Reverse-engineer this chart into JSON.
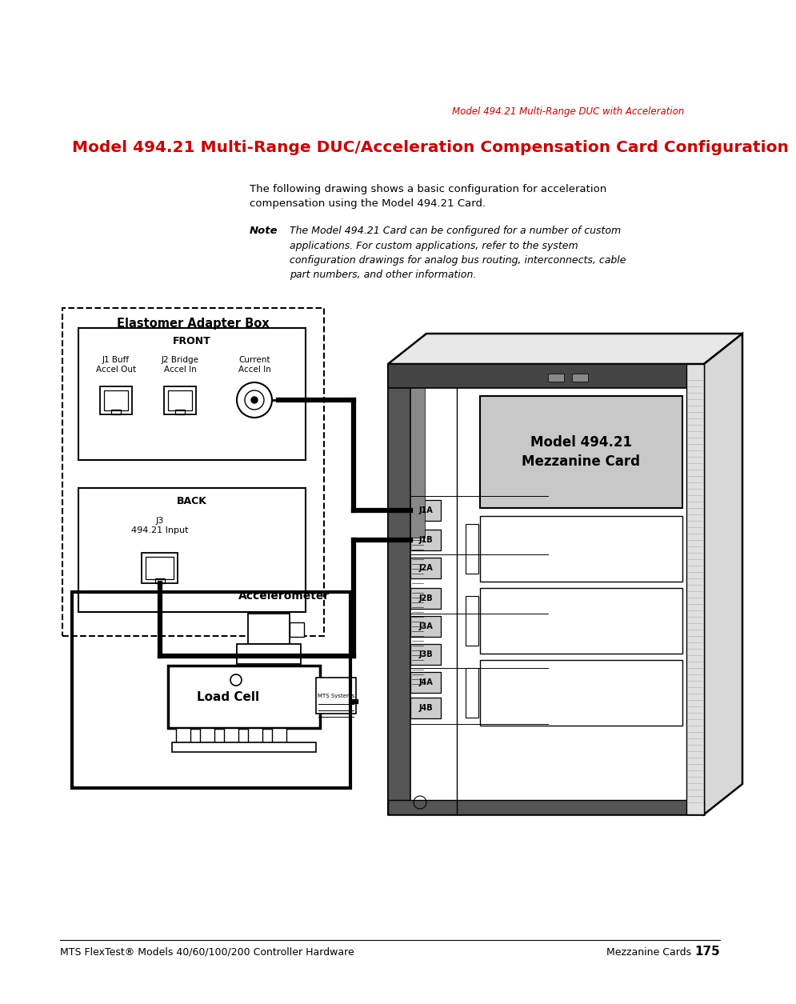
{
  "page_bg": "#ffffff",
  "header_text": "Model 494.21 Multi-Range DUC with Acceleration",
  "header_color": "#cc0000",
  "header_fontsize": 8.5,
  "title": "Model 494.21 Multi-Range DUC/Acceleration Compensation Card Configuration",
  "title_color": "#cc0000",
  "title_fontsize": 14.5,
  "body_text": "The following drawing shows a basic configuration for acceleration\ncompensation using the Model 494.21 Card.",
  "note_label": "Note",
  "note_text": "The Model 494.21 Card can be configured for a number of custom\napplications. For custom applications, refer to the system\nconfiguration drawings for analog bus routing, interconnects, cable\npart numbers, and other information.",
  "footer_left": "MTS FlexTest® Models 40/60/100/200 Controller Hardware",
  "footer_right": "Mezzanine Cards",
  "footer_page": "175",
  "eab_label": "Elastomer Adapter Box",
  "front_label": "FRONT",
  "j1_buff_label": "J1 Buff\nAccel Out",
  "j2_bridge_label": "J2 Bridge\nAccel In",
  "current_accel_label": "Current\nAccel In",
  "back_label": "BACK",
  "j3_label": "J3\n494.21 Input",
  "accelerometer_label": "Accelerometer",
  "load_cell_label": "Load Cell",
  "mts_systems_label": "MTS Systems",
  "model_card_label": "Model 494.21\nMezzanine Card",
  "connectors": [
    "J1A",
    "J1B",
    "J2A",
    "J2B",
    "J3A",
    "J3B",
    "J4A",
    "J4B"
  ]
}
